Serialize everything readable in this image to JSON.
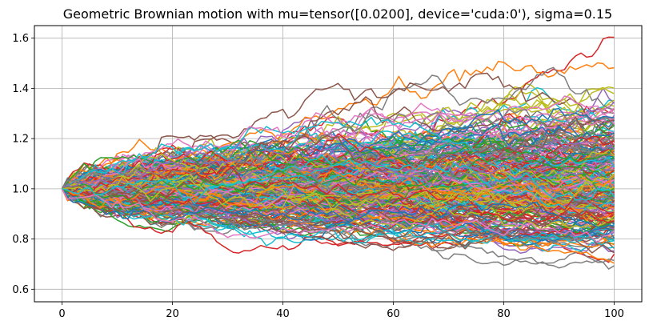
{
  "chart_data": {
    "type": "line",
    "title": "Geometric Brownian motion with mu=tensor([0.0200], device='cuda:0'), sigma=0.15",
    "xlabel": "",
    "ylabel": "",
    "xlim": [
      -5,
      105
    ],
    "ylim": [
      0.55,
      1.65
    ],
    "x_ticks": [
      0,
      20,
      40,
      60,
      80,
      100
    ],
    "y_ticks": [
      0.6,
      0.8,
      1.0,
      1.2,
      1.4,
      1.6
    ],
    "x_tick_labels": [
      "0",
      "20",
      "40",
      "60",
      "80",
      "100"
    ],
    "y_tick_labels": [
      "0.6",
      "0.8",
      "1.0",
      "1.2",
      "1.4",
      "1.6"
    ],
    "grid": true,
    "legend": "none",
    "x": {
      "start": 0,
      "end": 100,
      "step": 1
    },
    "start_value": 1.0,
    "mu": 0.02,
    "sigma": 0.15,
    "path_count": 300,
    "observed_max": 1.61,
    "observed_min": 0.61,
    "colors": [
      "#1f77b4",
      "#ff7f0e",
      "#2ca02c",
      "#d62728",
      "#9467bd",
      "#8c564b",
      "#e377c2",
      "#7f7f7f",
      "#bcbd22",
      "#17becf"
    ]
  }
}
